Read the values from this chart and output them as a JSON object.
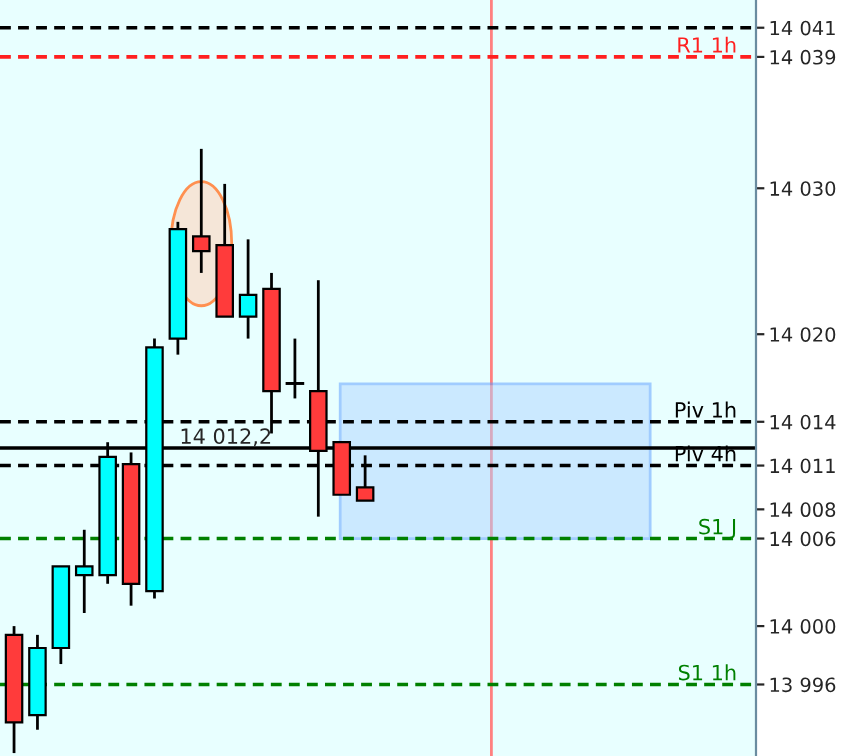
{
  "chart_data": {
    "type": "candlestick",
    "categories": [
      null,
      null,
      null,
      null,
      null,
      null,
      null,
      null,
      null,
      null,
      null,
      null,
      null,
      null,
      null,
      null,
      null,
      null,
      null,
      null,
      null,
      null,
      null,
      null,
      null,
      null,
      null,
      null,
      null,
      null,
      null,
      null
    ],
    "ohlc": [
      [
        13999.4,
        14000.0,
        13991.3,
        13993.4
      ],
      [
        13993.9,
        13999.4,
        13992.9,
        13998.5
      ],
      [
        13998.5,
        14004.1,
        13997.4,
        14004.1
      ],
      [
        14003.5,
        14006.6,
        14000.9,
        14004.1
      ],
      [
        14003.5,
        14012.6,
        14002.9,
        14011.6
      ],
      [
        14011.1,
        14011.9,
        14001.4,
        14002.9
      ],
      [
        14002.4,
        14019.7,
        14001.9,
        14019.1
      ],
      [
        14019.7,
        14027.7,
        14018.6,
        14027.2
      ],
      [
        14026.7,
        14032.7,
        14024.2,
        14025.7
      ],
      [
        14026.1,
        14030.3,
        14021.2,
        14021.2
      ],
      [
        14021.2,
        14026.5,
        14019.7,
        14022.7
      ],
      [
        14023.1,
        14024.2,
        14013.2,
        14016.1
      ],
      [
        14016.6,
        14019.7,
        14015.6,
        14016.6
      ],
      [
        14016.1,
        14023.7,
        14007.5,
        14012.0
      ],
      [
        14012.6,
        14012.6,
        14009.0,
        14009.0
      ],
      [
        14009.5,
        14011.7,
        14008.6,
        14008.6
      ],
      null,
      null,
      null,
      null,
      null,
      null,
      null,
      null,
      null,
      null,
      null,
      null,
      null,
      null,
      null,
      null
    ],
    "colors": [
      "#ff3b3b",
      "#00ffff",
      "#00ffff",
      "#00ffff",
      "#00ffff",
      "#ff3b3b",
      "#00ffff",
      "#00ffff",
      "#ff3b3b",
      "#ff3b3b",
      "#00ffff",
      "#ff3b3b",
      "#00ffff",
      "#ff3b3b",
      "#ff3b3b",
      "#ff3b3b",
      null,
      null,
      null,
      null,
      null,
      null,
      null,
      null,
      null,
      null,
      null,
      null,
      null,
      null,
      null,
      null
    ],
    "ylim": [
      13991.1,
      14042.9
    ],
    "yticks": [
      {
        "value": 14041,
        "label": "14 041"
      },
      {
        "value": 14039,
        "label": "14 039"
      },
      {
        "value": 14030,
        "label": "14 030"
      },
      {
        "value": 14020,
        "label": "14 020"
      },
      {
        "value": 14014,
        "label": "14 014"
      },
      {
        "value": 14011,
        "label": "14 011"
      },
      {
        "value": 14008,
        "label": "14 008"
      },
      {
        "value": 14006,
        "label": "14 006"
      },
      {
        "value": 14000,
        "label": "14 000"
      },
      {
        "value": 13996,
        "label": "13 996"
      }
    ],
    "tick_labels": "y",
    "grid": false,
    "legend": false,
    "ref_lines": [
      {
        "axis": "y",
        "value": 14041,
        "label": null,
        "color": "#000000",
        "line_style": "dashed"
      },
      {
        "axis": "y",
        "value": 14039,
        "label": "R1 1h",
        "color": "#ff2020",
        "line_style": "dashed"
      },
      {
        "axis": "y",
        "value": 14014,
        "label": "Piv 1h",
        "color": "#000000",
        "line_style": "dashed"
      },
      {
        "axis": "y",
        "value": 14012.2,
        "label": null,
        "color": "#000000",
        "line_style": "solid"
      },
      {
        "axis": "y",
        "value": 14011,
        "label": "Piv 4h",
        "color": "#000000",
        "line_style": "dashed"
      },
      {
        "axis": "y",
        "value": 14006,
        "label": "S1 J",
        "color": "#008000",
        "line_style": "dashed"
      },
      {
        "axis": "y",
        "value": 13996,
        "label": "S1 1h",
        "color": "#008000",
        "line_style": "dashed"
      }
    ],
    "bands": [
      {
        "axis": "y",
        "from": 14006,
        "to": 14016.6,
        "label": null,
        "color": "#b0d4ff"
      }
    ],
    "annotations": [
      {
        "text": "14 012,2",
        "y": 14012.2
      }
    ]
  }
}
